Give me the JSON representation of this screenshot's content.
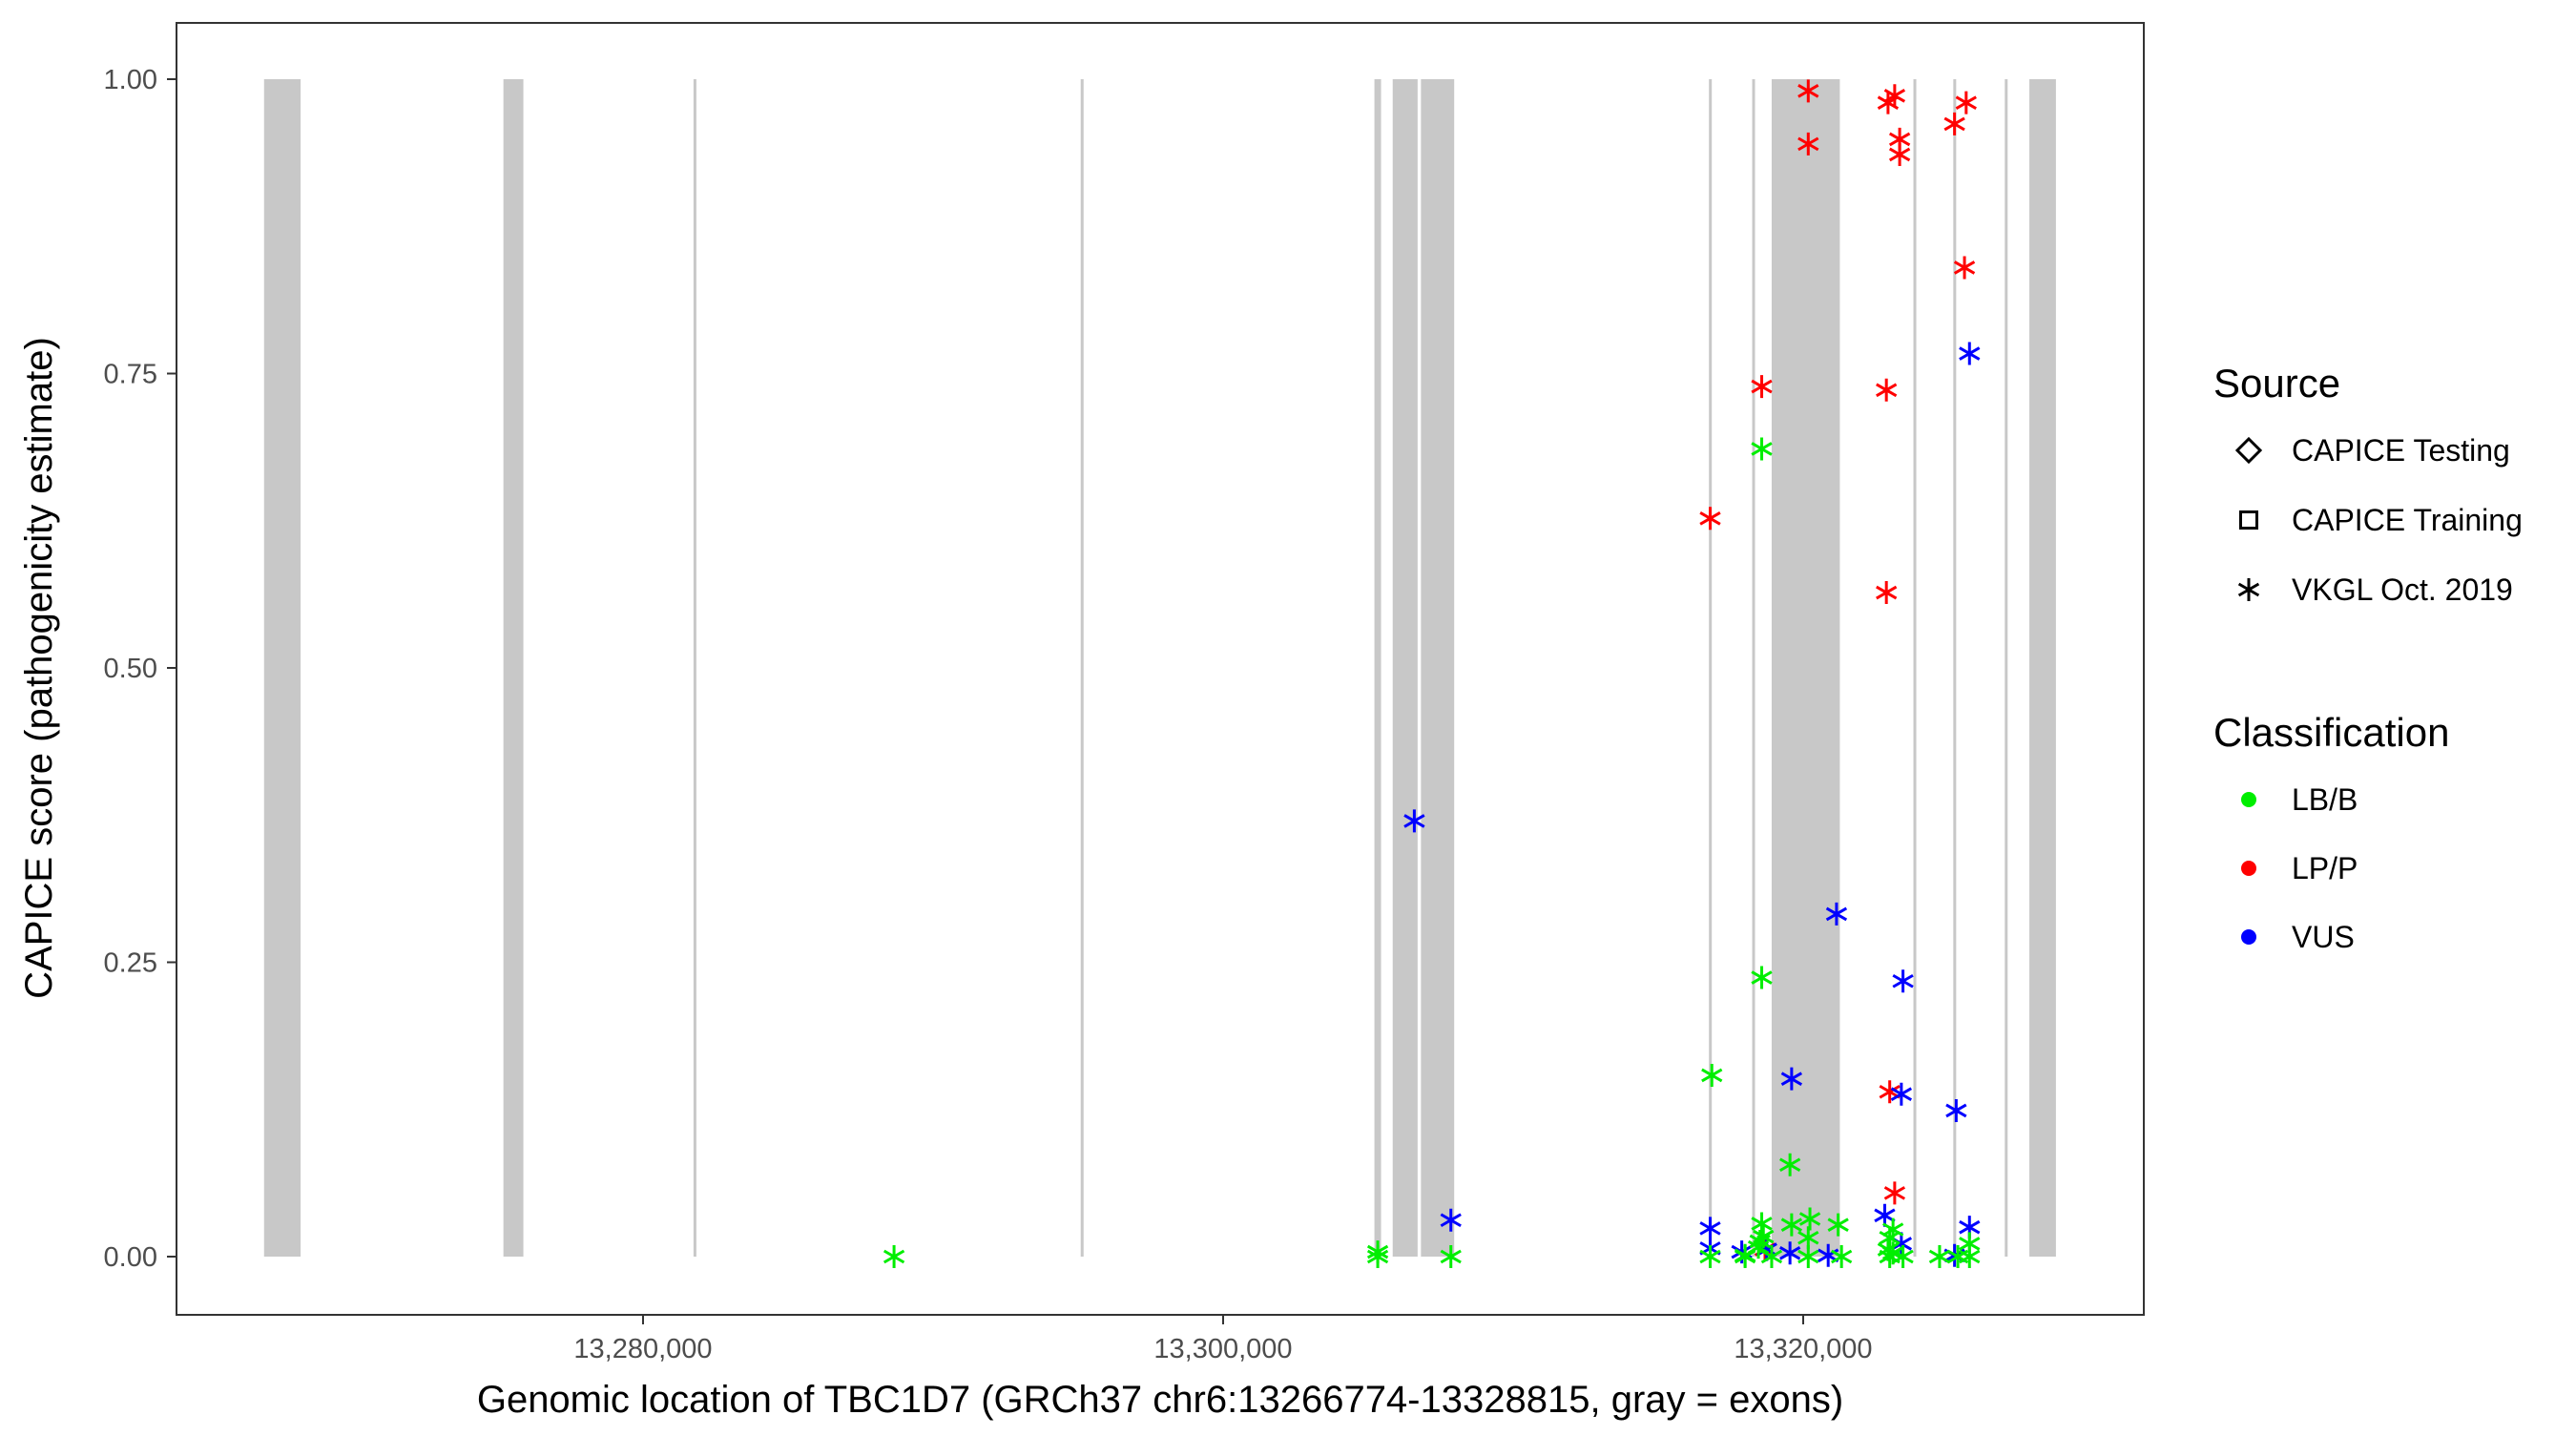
{
  "chart_data": {
    "type": "scatter",
    "title": "",
    "xlabel": "Genomic location of TBC1D7 (GRCh37 chr6:13266774-13328815, gray = exons)",
    "ylabel": "CAPICE score (pathogenicity estimate)",
    "xlim": [
      13263700,
      13331700
    ],
    "ylim": [
      -0.05,
      1.05
    ],
    "x_ticks": [
      {
        "value": 13280000,
        "label": "13,280,000"
      },
      {
        "value": 13300000,
        "label": "13,300,000"
      },
      {
        "value": 13320000,
        "label": "13,320,000"
      }
    ],
    "y_ticks": [
      {
        "value": 0,
        "label": "0.00"
      },
      {
        "value": 0.25,
        "label": "0.25"
      },
      {
        "value": 0.5,
        "label": "0.50"
      },
      {
        "value": 0.75,
        "label": "0.75"
      },
      {
        "value": 1,
        "label": "1.00"
      }
    ],
    "grid": false,
    "exon_color": "#c8c8c8",
    "exons": [
      [
        13266933,
        13268194
      ],
      [
        13275186,
        13275874
      ],
      [
        13281740,
        13281820
      ],
      [
        13295090,
        13295170
      ],
      [
        13305216,
        13305445
      ],
      [
        13305846,
        13306706
      ],
      [
        13306821,
        13307967
      ],
      [
        13316750,
        13316840
      ],
      [
        13318240,
        13318330
      ],
      [
        13318913,
        13321263
      ],
      [
        13323800,
        13323890
      ],
      [
        13325175,
        13325265
      ],
      [
        13326950,
        13327040
      ],
      [
        13327797,
        13328714
      ]
    ],
    "legend": {
      "placement": "right",
      "source": {
        "title": "Source",
        "items": [
          {
            "key": "testing",
            "label": "CAPICE Testing",
            "shape": "diamond"
          },
          {
            "key": "training",
            "label": "CAPICE Training",
            "shape": "square"
          },
          {
            "key": "vkgl",
            "label": "VKGL Oct. 2019",
            "shape": "asterisk"
          }
        ]
      },
      "classification": {
        "title": "Classification",
        "items": [
          {
            "key": "LBB",
            "label": "LB/B",
            "color": "#00ee00"
          },
          {
            "key": "LPP",
            "label": "LP/P",
            "color": "#ff0000"
          },
          {
            "key": "VUS",
            "label": "VUS",
            "color": "#0000ff"
          }
        ]
      }
    },
    "points": [
      {
        "x": 13320174,
        "y": 0.99,
        "s": "training",
        "c": "LPP"
      },
      {
        "x": 13320174,
        "y": 0.945,
        "s": "training",
        "c": "LPP"
      },
      {
        "x": 13322925,
        "y": 0.98,
        "s": "training",
        "c": "LPP"
      },
      {
        "x": 13323154,
        "y": 0.986,
        "s": "training",
        "c": "LPP"
      },
      {
        "x": 13323326,
        "y": 0.949,
        "s": "training",
        "c": "LPP"
      },
      {
        "x": 13323326,
        "y": 0.936,
        "s": "training",
        "c": "LPP"
      },
      {
        "x": 13325218,
        "y": 0.962,
        "s": "training",
        "c": "LPP"
      },
      {
        "x": 13325619,
        "y": 0.98,
        "s": "training",
        "c": "LPP"
      },
      {
        "x": 13318570,
        "y": 0.739,
        "s": "training",
        "c": "LPP"
      },
      {
        "x": 13322983,
        "y": 0.14,
        "s": "training",
        "c": "LPP"
      },
      {
        "x": 13325561,
        "y": 0.84,
        "s": "testing",
        "c": "LPP"
      },
      {
        "x": 13322868,
        "y": 0.736,
        "s": "testing",
        "c": "LPP"
      },
      {
        "x": 13316793,
        "y": 0.627,
        "s": "vkgl",
        "c": "LPP"
      },
      {
        "x": 13322868,
        "y": 0.564,
        "s": "vkgl",
        "c": "LPP"
      },
      {
        "x": 13323154,
        "y": 0.054,
        "s": "vkgl",
        "c": "LPP"
      },
      {
        "x": 13318684,
        "y": 0.006,
        "s": "vkgl",
        "c": "LPP"
      },
      {
        "x": 13325733,
        "y": 0.767,
        "s": "vkgl",
        "c": "VUS"
      },
      {
        "x": 13306592,
        "y": 0.37,
        "s": "vkgl",
        "c": "VUS"
      },
      {
        "x": 13321149,
        "y": 0.291,
        "s": "vkgl",
        "c": "VUS"
      },
      {
        "x": 13323441,
        "y": 0.234,
        "s": "vkgl",
        "c": "VUS"
      },
      {
        "x": 13319601,
        "y": 0.151,
        "s": "vkgl",
        "c": "VUS"
      },
      {
        "x": 13323384,
        "y": 0.138,
        "s": "vkgl",
        "c": "VUS"
      },
      {
        "x": 13325275,
        "y": 0.124,
        "s": "vkgl",
        "c": "VUS"
      },
      {
        "x": 13307853,
        "y": 0.031,
        "s": "vkgl",
        "c": "VUS"
      },
      {
        "x": 13316793,
        "y": 0.024,
        "s": "vkgl",
        "c": "VUS"
      },
      {
        "x": 13322811,
        "y": 0.035,
        "s": "vkgl",
        "c": "VUS"
      },
      {
        "x": 13325733,
        "y": 0.025,
        "s": "vkgl",
        "c": "VUS"
      },
      {
        "x": 13316793,
        "y": 0.007,
        "s": "vkgl",
        "c": "VUS"
      },
      {
        "x": 13318742,
        "y": 0.006,
        "s": "vkgl",
        "c": "VUS"
      },
      {
        "x": 13319544,
        "y": 0.003,
        "s": "vkgl",
        "c": "VUS"
      },
      {
        "x": 13320862,
        "y": 0.001,
        "s": "vkgl",
        "c": "VUS"
      },
      {
        "x": 13323384,
        "y": 0.011,
        "s": "vkgl",
        "c": "VUS"
      },
      {
        "x": 13325218,
        "y": 0.001,
        "s": "vkgl",
        "c": "VUS"
      },
      {
        "x": 13317882,
        "y": 0.004,
        "s": "vkgl",
        "c": "VUS"
      },
      {
        "x": 13318570,
        "y": 0.686,
        "s": "testing",
        "c": "LBB"
      },
      {
        "x": 13319544,
        "y": 0.078,
        "s": "testing",
        "c": "LBB"
      },
      {
        "x": 13319601,
        "y": 0.027,
        "s": "testing",
        "c": "LBB"
      },
      {
        "x": 13318627,
        "y": 0.017,
        "s": "testing",
        "c": "LBB"
      },
      {
        "x": 13318570,
        "y": 0.237,
        "s": "training",
        "c": "LBB"
      },
      {
        "x": 13316850,
        "y": 0.154,
        "s": "training",
        "c": "LBB"
      },
      {
        "x": 13288654,
        "y": 0.0,
        "s": "training",
        "c": "LBB"
      },
      {
        "x": 13305331,
        "y": 0.004,
        "s": "training",
        "c": "LBB"
      },
      {
        "x": 13305331,
        "y": 0.0,
        "s": "training",
        "c": "LBB"
      },
      {
        "x": 13307853,
        "y": 0.0,
        "s": "training",
        "c": "LBB"
      },
      {
        "x": 13320232,
        "y": 0.032,
        "s": "training",
        "c": "LBB"
      },
      {
        "x": 13321206,
        "y": 0.027,
        "s": "training",
        "c": "LBB"
      },
      {
        "x": 13316793,
        "y": 0.0,
        "s": "training",
        "c": "LBB"
      },
      {
        "x": 13317997,
        "y": 0.0,
        "s": "training",
        "c": "LBB"
      },
      {
        "x": 13318913,
        "y": 0.0,
        "s": "training",
        "c": "LBB"
      },
      {
        "x": 13320174,
        "y": 0.0,
        "s": "training",
        "c": "LBB"
      },
      {
        "x": 13321321,
        "y": 0.0,
        "s": "training",
        "c": "LBB"
      },
      {
        "x": 13322983,
        "y": 0.0,
        "s": "training",
        "c": "LBB"
      },
      {
        "x": 13323441,
        "y": 0.0,
        "s": "training",
        "c": "LBB"
      },
      {
        "x": 13324702,
        "y": 0.0,
        "s": "training",
        "c": "LBB"
      },
      {
        "x": 13325332,
        "y": 0.0,
        "s": "training",
        "c": "LBB"
      },
      {
        "x": 13325733,
        "y": 0.0,
        "s": "training",
        "c": "LBB"
      },
      {
        "x": 13323097,
        "y": 0.023,
        "s": "training",
        "c": "LBB"
      },
      {
        "x": 13325733,
        "y": 0.011,
        "s": "training",
        "c": "LBB"
      },
      {
        "x": 13318455,
        "y": 0.008,
        "s": "training",
        "c": "LBB"
      },
      {
        "x": 13320174,
        "y": 0.016,
        "s": "training",
        "c": "LBB"
      },
      {
        "x": 13322983,
        "y": 0.016,
        "s": "training",
        "c": "LBB"
      },
      {
        "x": 13318570,
        "y": 0.028,
        "s": "vkgl",
        "c": "LBB"
      },
      {
        "x": 13318512,
        "y": 0.013,
        "s": "vkgl",
        "c": "LBB"
      },
      {
        "x": 13322925,
        "y": 0.006,
        "s": "vkgl",
        "c": "LBB"
      },
      {
        "x": 13323097,
        "y": 0.003,
        "s": "vkgl",
        "c": "LBB"
      },
      {
        "x": 13317997,
        "y": 0.001,
        "s": "vkgl",
        "c": "LBB"
      }
    ]
  }
}
